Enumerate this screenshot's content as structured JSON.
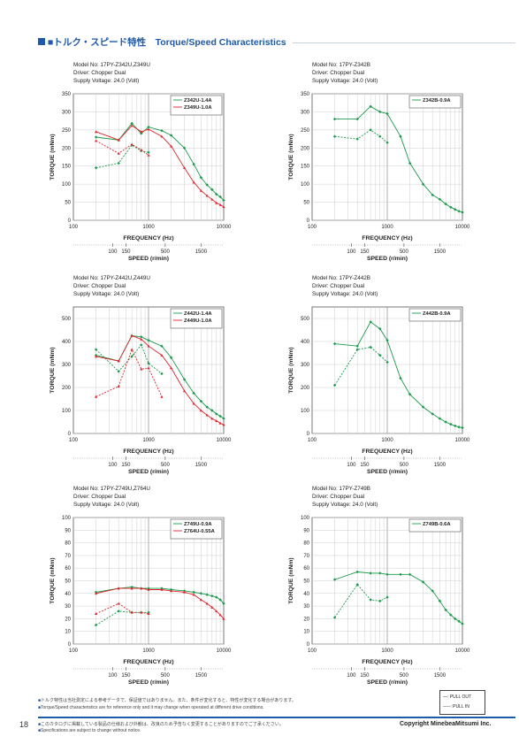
{
  "header": {
    "title": "■トルク・スピード特性　Torque/Speed Characteristics"
  },
  "colors": {
    "green": "#1a9a4a",
    "red": "#e0242c",
    "accent": "#1f5aa8"
  },
  "chart_data": [
    {
      "type": "line",
      "info": [
        "Model No: 17PY-Z342U,Z349U",
        "Driver: Chopper Dual",
        "Supply Voltage: 24.0 (Volt)"
      ],
      "xlabel": "FREQUENCY (Hz)",
      "ylabel": "TORQUE (mNm)",
      "speed_label": "SPEED (r/min)",
      "xlog": true,
      "xlim": [
        100,
        10000
      ],
      "ylim": [
        0,
        350
      ],
      "xticks": [
        "100",
        "1000",
        "10000"
      ],
      "yticks": [
        0,
        50,
        100,
        150,
        200,
        250,
        300,
        350
      ],
      "speed_ticks": [
        {
          "label": "100",
          "hz": 333
        },
        {
          "label": "150",
          "hz": 500
        },
        {
          "label": "500",
          "hz": 1667
        },
        {
          "label": "1500",
          "hz": 5000
        }
      ],
      "series": [
        {
          "name": "Z342U-1.4A",
          "color": "green",
          "dash": false,
          "x": [
            200,
            400,
            600,
            800,
            1000,
            1500,
            2000,
            3000,
            4000,
            5000,
            6000,
            7000,
            8000,
            9000,
            10000
          ],
          "y": [
            230,
            222,
            268,
            240,
            258,
            248,
            235,
            200,
            155,
            118,
            98,
            85,
            72,
            65,
            55
          ]
        },
        {
          "name": "Z342U-1.4A",
          "color": "green",
          "dash": true,
          "x": [
            200,
            400,
            600,
            800,
            1000
          ],
          "y": [
            145,
            158,
            208,
            192,
            188
          ]
        },
        {
          "name": "Z349U-1.0A",
          "color": "red",
          "dash": false,
          "x": [
            200,
            400,
            600,
            800,
            1000,
            1500,
            2000,
            3000,
            4000,
            5000,
            6000,
            7000,
            8000,
            9000,
            10000
          ],
          "y": [
            245,
            222,
            262,
            245,
            252,
            232,
            205,
            145,
            105,
            82,
            68,
            58,
            48,
            43,
            37
          ]
        },
        {
          "name": "Z349U-1.0A",
          "color": "red",
          "dash": true,
          "x": [
            200,
            400,
            600,
            800,
            1000
          ],
          "y": [
            220,
            185,
            210,
            195,
            180
          ]
        }
      ]
    },
    {
      "type": "line",
      "info": [
        "Model No: 17PY-Z342B",
        "Driver: Chopper Dual",
        "Supply Voltage: 24.0 (Volt)"
      ],
      "xlabel": "FREQUENCY (Hz)",
      "ylabel": "TORQUE (mNm)",
      "speed_label": "SPEED (r/min)",
      "xlog": true,
      "xlim": [
        100,
        10000
      ],
      "ylim": [
        0,
        350
      ],
      "xticks": [
        "100",
        "1000",
        "10000"
      ],
      "yticks": [
        0,
        50,
        100,
        150,
        200,
        250,
        300,
        350
      ],
      "speed_ticks": [
        {
          "label": "100",
          "hz": 333
        },
        {
          "label": "150",
          "hz": 500
        },
        {
          "label": "500",
          "hz": 1667
        },
        {
          "label": "1500",
          "hz": 5000
        }
      ],
      "series": [
        {
          "name": "Z342B-0.9A",
          "color": "green",
          "dash": false,
          "x": [
            200,
            400,
            600,
            800,
            1000,
            1500,
            2000,
            3000,
            4000,
            5000,
            6000,
            7000,
            8000,
            9000,
            10000
          ],
          "y": [
            280,
            280,
            315,
            300,
            295,
            232,
            158,
            100,
            70,
            58,
            45,
            36,
            30,
            25,
            22
          ]
        },
        {
          "name": "Z342B-0.9A",
          "color": "green",
          "dash": true,
          "x": [
            200,
            400,
            600,
            800,
            1000
          ],
          "y": [
            232,
            225,
            250,
            232,
            215
          ]
        }
      ]
    },
    {
      "type": "line",
      "info": [
        "Model No: 17PY-Z442U,Z449U",
        "Driver: Chopper Dual",
        "Supply Voltage: 24.0 (Volt)"
      ],
      "xlabel": "FREQUENCY (Hz)",
      "ylabel": "TORQUE (mNm)",
      "speed_label": "SPEED (r/min)",
      "xlog": true,
      "xlim": [
        100,
        10000
      ],
      "ylim": [
        0,
        550
      ],
      "xticks": [
        "100",
        "1000",
        "10000"
      ],
      "yticks": [
        0,
        100,
        200,
        300,
        400,
        500
      ],
      "speed_ticks": [
        {
          "label": "100",
          "hz": 333
        },
        {
          "label": "150",
          "hz": 500
        },
        {
          "label": "500",
          "hz": 1667
        },
        {
          "label": "1500",
          "hz": 5000
        }
      ],
      "series": [
        {
          "name": "Z442U-1.4A",
          "color": "green",
          "dash": false,
          "x": [
            200,
            400,
            600,
            800,
            1000,
            1500,
            2000,
            3000,
            4000,
            5000,
            6000,
            7000,
            8000,
            9000,
            10000
          ],
          "y": [
            340,
            315,
            425,
            420,
            405,
            380,
            330,
            235,
            175,
            140,
            115,
            100,
            85,
            75,
            65
          ]
        },
        {
          "name": "Z442U-1.4A",
          "color": "green",
          "dash": true,
          "x": [
            200,
            400,
            600,
            800,
            1000,
            1500
          ],
          "y": [
            365,
            270,
            335,
            385,
            305,
            260
          ]
        },
        {
          "name": "Z449U-1.0A",
          "color": "red",
          "dash": false,
          "x": [
            200,
            400,
            600,
            800,
            1000,
            1500,
            2000,
            3000,
            4000,
            5000,
            6000,
            7000,
            8000,
            9000,
            10000
          ],
          "y": [
            335,
            315,
            425,
            410,
            380,
            340,
            285,
            185,
            130,
            100,
            80,
            65,
            55,
            45,
            38
          ]
        },
        {
          "name": "Z449U-1.0A",
          "color": "red",
          "dash": true,
          "x": [
            200,
            400,
            600,
            800,
            1000,
            1500
          ],
          "y": [
            160,
            205,
            365,
            280,
            285,
            160
          ]
        }
      ]
    },
    {
      "type": "line",
      "info": [
        "Model No: 17PY-Z442B",
        "Driver: Chopper Dual",
        "Supply Voltage: 24.0 (Volt)"
      ],
      "xlabel": "FREQUENCY (Hz)",
      "ylabel": "TORQUE (mNm)",
      "speed_label": "SPEED (r/min)",
      "xlog": true,
      "xlim": [
        100,
        10000
      ],
      "ylim": [
        0,
        550
      ],
      "xticks": [
        "100",
        "1000",
        "10000"
      ],
      "yticks": [
        0,
        100,
        200,
        300,
        400,
        500
      ],
      "speed_ticks": [
        {
          "label": "100",
          "hz": 333
        },
        {
          "label": "150",
          "hz": 500
        },
        {
          "label": "500",
          "hz": 1667
        },
        {
          "label": "1500",
          "hz": 5000
        }
      ],
      "series": [
        {
          "name": "Z442B-0.9A",
          "color": "green",
          "dash": false,
          "x": [
            200,
            400,
            600,
            800,
            1000,
            1500,
            2000,
            3000,
            4000,
            5000,
            6000,
            7000,
            8000,
            9000,
            10000
          ],
          "y": [
            390,
            380,
            485,
            455,
            405,
            240,
            170,
            115,
            85,
            65,
            50,
            40,
            33,
            28,
            25
          ]
        },
        {
          "name": "Z442B-0.9A",
          "color": "green",
          "dash": true,
          "x": [
            200,
            400,
            600,
            800,
            1000
          ],
          "y": [
            210,
            365,
            375,
            340,
            310
          ]
        }
      ]
    },
    {
      "type": "line",
      "info": [
        "Model No: 17PY-Z749U,Z764U",
        "Driver: Chopper Dual",
        "Supply Voltage: 24.0 (Volt)"
      ],
      "xlabel": "FREQUENCY (Hz)",
      "ylabel": "TORQUE (mNm)",
      "speed_label": "SPEED (r/min)",
      "xlog": true,
      "xlim": [
        100,
        10000
      ],
      "ylim": [
        0,
        100
      ],
      "xticks": [
        "100",
        "1000",
        "10000"
      ],
      "yticks": [
        0,
        10,
        20,
        30,
        40,
        50,
        60,
        70,
        80,
        90,
        100
      ],
      "speed_ticks": [
        {
          "label": "100",
          "hz": 333
        },
        {
          "label": "150",
          "hz": 500
        },
        {
          "label": "500",
          "hz": 1667
        },
        {
          "label": "1500",
          "hz": 5000
        }
      ],
      "series": [
        {
          "name": "Z749U-0.9A",
          "color": "green",
          "dash": false,
          "x": [
            200,
            400,
            600,
            800,
            1000,
            1500,
            2000,
            3000,
            4000,
            5000,
            6000,
            7000,
            8000,
            9000,
            10000
          ],
          "y": [
            41,
            44,
            45,
            44,
            44,
            44,
            43,
            42,
            41,
            40,
            39,
            38,
            37,
            35,
            32
          ]
        },
        {
          "name": "Z749U-0.9A",
          "color": "green",
          "dash": true,
          "x": [
            200,
            400,
            600,
            800,
            1000
          ],
          "y": [
            15,
            26,
            25,
            25,
            25
          ]
        },
        {
          "name": "Z764U-0.55A",
          "color": "red",
          "dash": false,
          "x": [
            200,
            400,
            600,
            800,
            1000,
            1500,
            2000,
            3000,
            4000,
            5000,
            6000,
            7000,
            8000,
            9000,
            10000
          ],
          "y": [
            40,
            44,
            44,
            44,
            43,
            43,
            42,
            41,
            39,
            35,
            32,
            29,
            26,
            23,
            20
          ]
        },
        {
          "name": "Z764U-0.55A",
          "color": "red",
          "dash": true,
          "x": [
            200,
            400,
            600,
            800,
            1000
          ],
          "y": [
            24,
            32,
            25,
            25,
            24
          ]
        }
      ]
    },
    {
      "type": "line",
      "info": [
        "Model No: 17PY-Z749B",
        "Driver: Chopper Dual",
        "Supply Voltage: 24.0 (Volt)"
      ],
      "xlabel": "FREQUENCY (Hz)",
      "ylabel": "TORQUE (mNm)",
      "speed_label": "SPEED (r/min)",
      "xlog": true,
      "xlim": [
        100,
        10000
      ],
      "ylim": [
        0,
        100
      ],
      "xticks": [
        "100",
        "1000",
        "10000"
      ],
      "yticks": [
        0,
        10,
        20,
        30,
        40,
        50,
        60,
        70,
        80,
        90,
        100
      ],
      "speed_ticks": [
        {
          "label": "100",
          "hz": 333
        },
        {
          "label": "150",
          "hz": 500
        },
        {
          "label": "500",
          "hz": 1667
        },
        {
          "label": "1500",
          "hz": 5000
        }
      ],
      "series": [
        {
          "name": "Z749B-0.6A",
          "color": "green",
          "dash": false,
          "x": [
            200,
            400,
            600,
            800,
            1000,
            1500,
            2000,
            3000,
            4000,
            5000,
            6000,
            7000,
            8000,
            9000,
            10000
          ],
          "y": [
            51,
            57,
            56,
            56,
            55,
            55,
            55,
            49,
            42,
            34,
            27,
            23,
            20,
            18,
            16
          ]
        },
        {
          "name": "Z749B-0.6A",
          "color": "green",
          "dash": true,
          "x": [
            200,
            400,
            600,
            800,
            1000
          ],
          "y": [
            21,
            47,
            35,
            34,
            37
          ]
        }
      ]
    }
  ],
  "legend": {
    "pull_out": "—: PULL OUT",
    "pull_in": "-----: PULL IN"
  },
  "notes": {
    "note1": "トルク特性は当社測定による参考データで、保証値ではありません。また、条件が変化すると、特性が変化する場合があります。",
    "note2": "Torque/Speed characteristics are for reference only and it may change when operated at different drive conditions."
  },
  "footer": {
    "page": "18",
    "note1": "このカタログに掲載している製品の仕様および外観は、改良のため予告なく変更することがありますのでご了承ください。",
    "note2": "Specifications are subject to change without notice.",
    "copyright": "Copyright MinebeaMitsumi Inc."
  }
}
